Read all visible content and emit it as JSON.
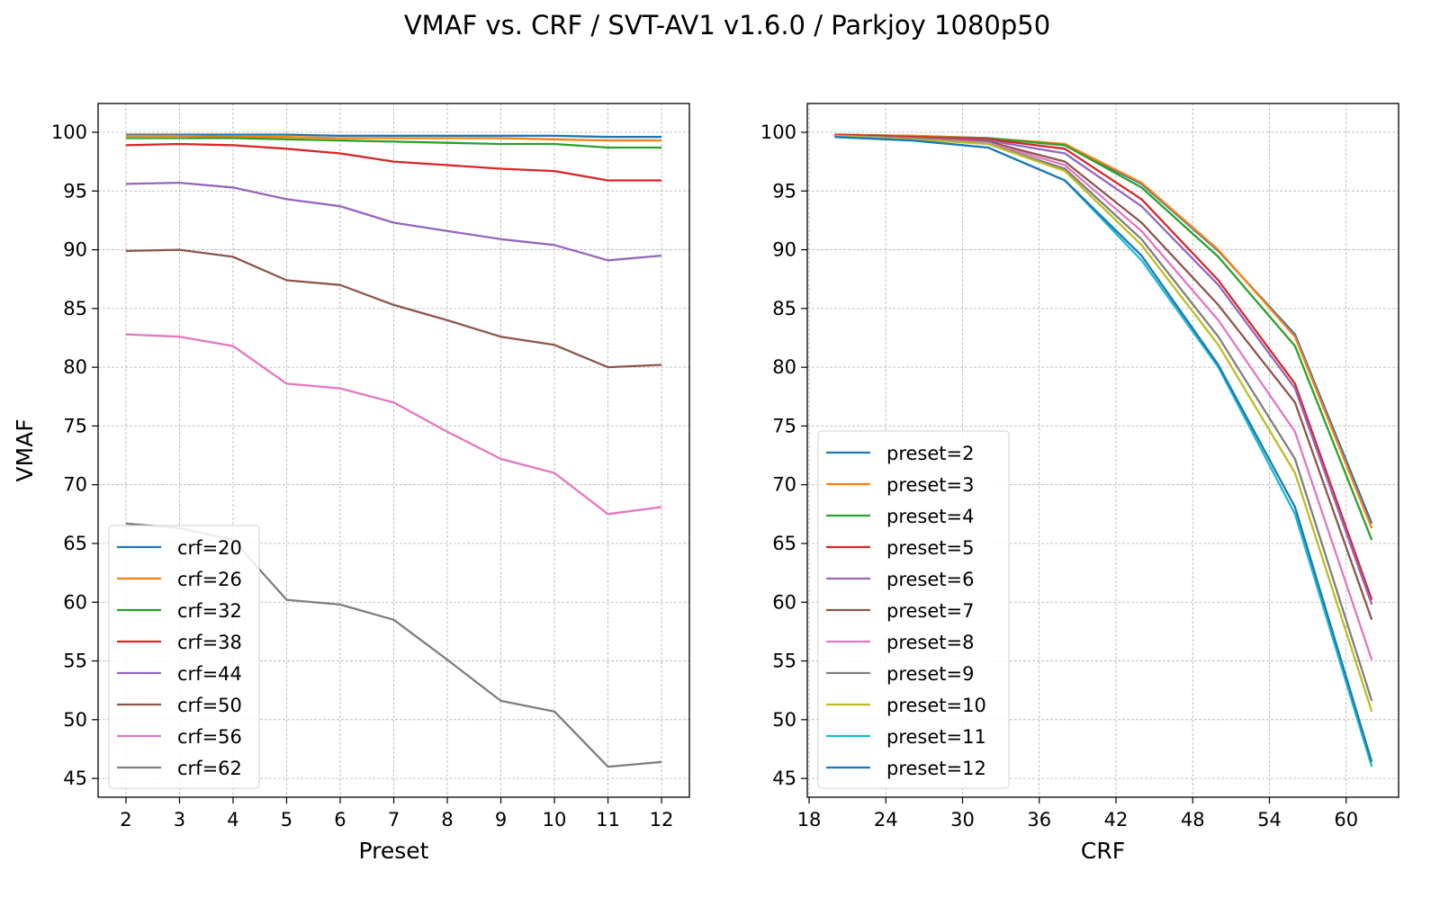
{
  "title": "VMAF vs. CRF / SVT-AV1 v1.6.0 / Parkjoy 1080p50",
  "colors": [
    "#1f77b4",
    "#ff7f0e",
    "#2ca02c",
    "#d62728",
    "#9467bd",
    "#8c564b",
    "#e377c2",
    "#7f7f7f",
    "#bcbd22",
    "#17becf",
    "#1f77b4"
  ],
  "chart_data": [
    {
      "type": "line",
      "xlabel": "Preset",
      "ylabel": "VMAF",
      "x": [
        2,
        3,
        4,
        5,
        6,
        7,
        8,
        9,
        10,
        11,
        12
      ],
      "xticks": [
        2,
        3,
        4,
        5,
        6,
        7,
        8,
        9,
        10,
        11,
        12
      ],
      "yticks": [
        45,
        50,
        55,
        60,
        65,
        70,
        75,
        80,
        85,
        90,
        95,
        100
      ],
      "xlim": [
        1.48,
        12.52
      ],
      "ylim": [
        43.4,
        102.45
      ],
      "grid": true,
      "legend_placement": "lower-left",
      "series": [
        {
          "name": "crf=20",
          "values": [
            99.8,
            99.8,
            99.8,
            99.8,
            99.7,
            99.7,
            99.7,
            99.7,
            99.7,
            99.6,
            99.6
          ]
        },
        {
          "name": "crf=26",
          "values": [
            99.7,
            99.7,
            99.6,
            99.6,
            99.5,
            99.5,
            99.5,
            99.5,
            99.4,
            99.3,
            99.3
          ]
        },
        {
          "name": "crf=32",
          "values": [
            99.5,
            99.5,
            99.5,
            99.4,
            99.3,
            99.2,
            99.1,
            99.0,
            99.0,
            98.7,
            98.7
          ]
        },
        {
          "name": "crf=38",
          "values": [
            98.9,
            99.0,
            98.9,
            98.6,
            98.2,
            97.5,
            97.2,
            96.9,
            96.7,
            95.9,
            95.9
          ]
        },
        {
          "name": "crf=44",
          "values": [
            95.6,
            95.7,
            95.3,
            94.3,
            93.7,
            92.3,
            91.6,
            90.9,
            90.4,
            89.1,
            89.5
          ]
        },
        {
          "name": "crf=50",
          "values": [
            89.9,
            90.0,
            89.4,
            87.4,
            87.0,
            85.3,
            84.0,
            82.6,
            81.9,
            80.0,
            80.2
          ]
        },
        {
          "name": "crf=56",
          "values": [
            82.8,
            82.6,
            81.8,
            78.6,
            78.2,
            77.0,
            74.5,
            72.2,
            71.0,
            67.5,
            68.1
          ]
        },
        {
          "name": "crf=62",
          "values": [
            66.7,
            66.3,
            65.3,
            60.2,
            59.8,
            58.5,
            55.1,
            51.6,
            50.7,
            46.0,
            46.4
          ]
        }
      ]
    },
    {
      "type": "line",
      "xlabel": "CRF",
      "ylabel": "",
      "x": [
        20,
        26,
        32,
        38,
        44,
        50,
        56,
        62
      ],
      "xticks": [
        18,
        24,
        30,
        36,
        42,
        48,
        54,
        60
      ],
      "yticks": [
        45,
        50,
        55,
        60,
        65,
        70,
        75,
        80,
        85,
        90,
        95,
        100
      ],
      "xlim": [
        17.86,
        64.1
      ],
      "ylim": [
        43.4,
        102.45
      ],
      "grid": true,
      "legend_placement": "lower-left",
      "series": [
        {
          "name": "preset=2",
          "values": [
            99.8,
            99.7,
            99.5,
            98.9,
            95.6,
            89.9,
            82.8,
            66.7
          ]
        },
        {
          "name": "preset=3",
          "values": [
            99.8,
            99.7,
            99.5,
            99.0,
            95.7,
            90.0,
            82.6,
            66.3
          ]
        },
        {
          "name": "preset=4",
          "values": [
            99.8,
            99.6,
            99.5,
            98.9,
            95.3,
            89.4,
            81.8,
            65.3
          ]
        },
        {
          "name": "preset=5",
          "values": [
            99.8,
            99.6,
            99.4,
            98.6,
            94.3,
            87.4,
            78.6,
            60.2
          ]
        },
        {
          "name": "preset=6",
          "values": [
            99.7,
            99.5,
            99.3,
            98.2,
            93.7,
            87.0,
            78.2,
            59.8
          ]
        },
        {
          "name": "preset=7",
          "values": [
            99.7,
            99.5,
            99.2,
            97.5,
            92.3,
            85.3,
            77.0,
            58.5
          ]
        },
        {
          "name": "preset=8",
          "values": [
            99.7,
            99.5,
            99.1,
            97.2,
            91.6,
            84.0,
            74.5,
            55.1
          ]
        },
        {
          "name": "preset=9",
          "values": [
            99.7,
            99.5,
            99.0,
            96.9,
            90.9,
            82.6,
            72.2,
            51.6
          ]
        },
        {
          "name": "preset=10",
          "values": [
            99.7,
            99.4,
            99.0,
            96.7,
            90.4,
            81.9,
            71.0,
            50.7
          ]
        },
        {
          "name": "preset=11",
          "values": [
            99.6,
            99.3,
            98.7,
            95.9,
            89.1,
            80.0,
            67.5,
            46.0
          ]
        },
        {
          "name": "preset=12",
          "values": [
            99.6,
            99.3,
            98.7,
            95.9,
            89.5,
            80.2,
            68.1,
            46.4
          ]
        }
      ]
    }
  ]
}
